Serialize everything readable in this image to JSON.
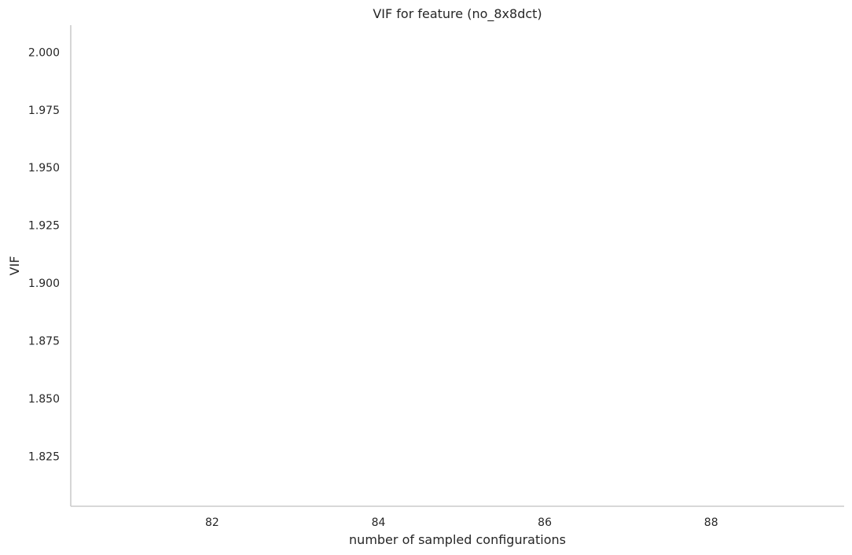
{
  "chart_data": {
    "type": "line",
    "title": "VIF for feature (no_8x8dct)",
    "xlabel": "number of sampled configurations",
    "ylabel": "VIF",
    "xlim": [
      80.3,
      89.6
    ],
    "ylim": [
      1.8033,
      2.0117
    ],
    "x_ticks": [
      82,
      84,
      86,
      88
    ],
    "x_tick_labels": [
      "82",
      "84",
      "86",
      "88"
    ],
    "y_ticks": [
      2.0,
      1.975,
      1.95,
      1.925,
      1.9,
      1.875,
      1.85,
      1.825
    ],
    "y_tick_labels": [
      "2.000",
      "1.975",
      "1.950",
      "1.925",
      "1.900",
      "1.875",
      "1.850",
      "1.825"
    ],
    "series": [],
    "grid": false,
    "legend": "none",
    "spines": [
      "left",
      "bottom"
    ],
    "colors": {
      "text": "#262626",
      "spine": "#cccccc",
      "background": "#ffffff"
    }
  }
}
